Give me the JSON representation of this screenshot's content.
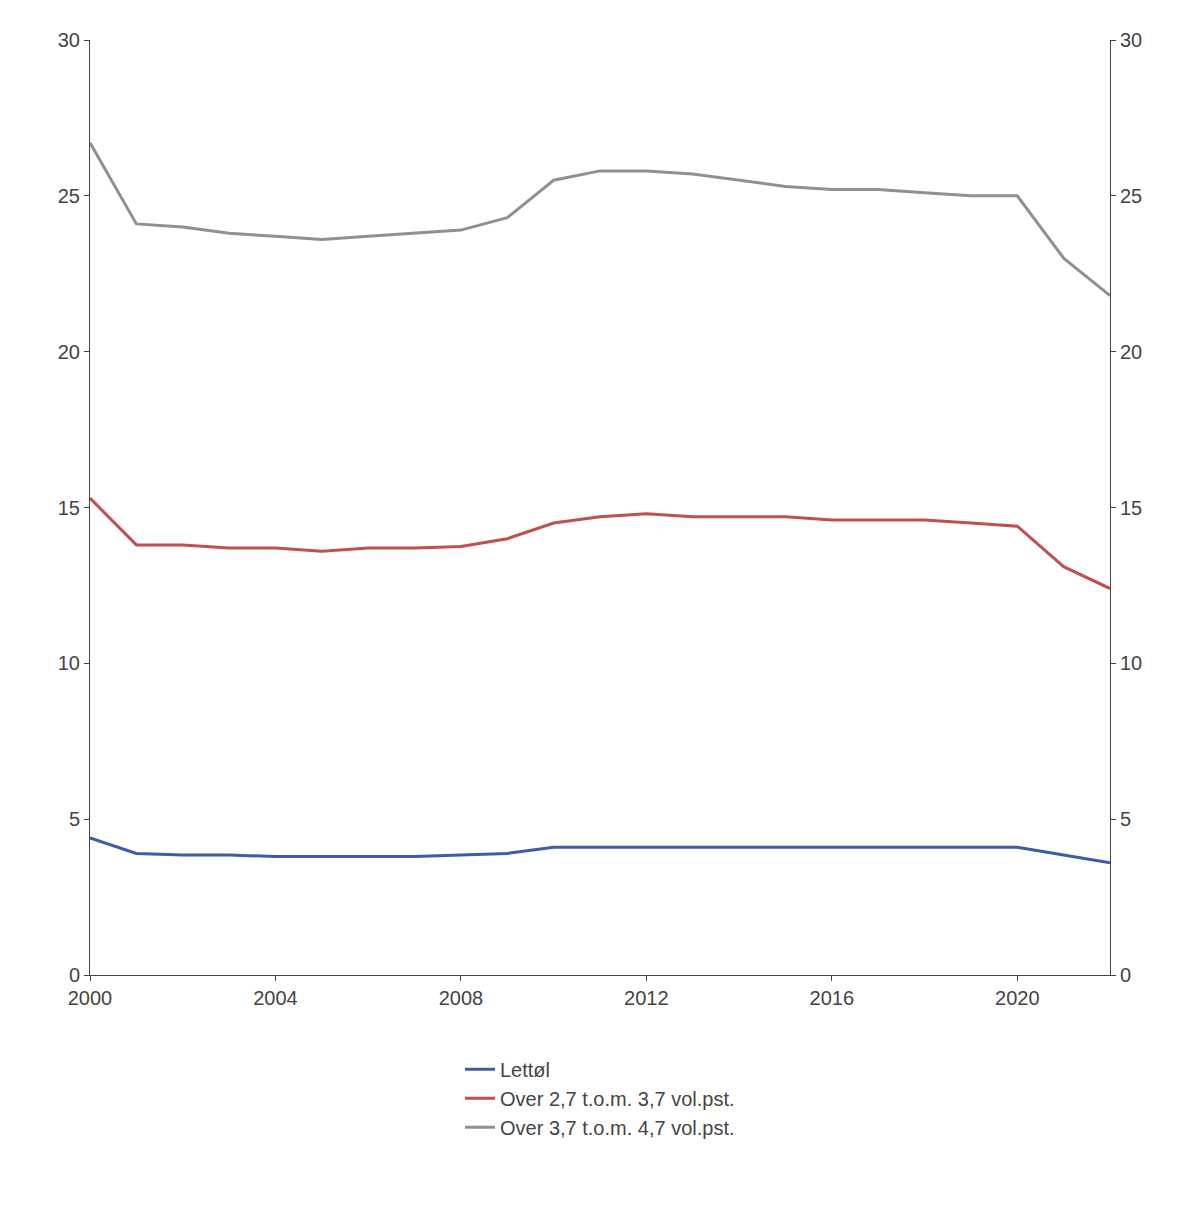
{
  "chart_data": {
    "type": "line",
    "x": [
      2000,
      2001,
      2002,
      2003,
      2004,
      2005,
      2006,
      2007,
      2008,
      2009,
      2010,
      2011,
      2012,
      2013,
      2014,
      2015,
      2016,
      2017,
      2018,
      2019,
      2020,
      2021,
      2022
    ],
    "series": [
      {
        "name": "Lettøl",
        "color": "#3D5BA9",
        "values": [
          4.4,
          3.9,
          3.85,
          3.85,
          3.8,
          3.8,
          3.8,
          3.8,
          3.85,
          3.9,
          4.1,
          4.1,
          4.1,
          4.1,
          4.1,
          4.1,
          4.1,
          4.1,
          4.1,
          4.1,
          4.1,
          3.85,
          3.6
        ]
      },
      {
        "name": "Over 2,7 t.o.m. 3,7 vol.pst.",
        "color": "#C0504D",
        "values": [
          15.3,
          13.8,
          13.8,
          13.7,
          13.7,
          13.6,
          13.7,
          13.7,
          13.75,
          14.0,
          14.5,
          14.7,
          14.8,
          14.7,
          14.7,
          14.7,
          14.6,
          14.6,
          14.6,
          14.5,
          14.4,
          13.1,
          12.4
        ]
      },
      {
        "name": "Over 3,7 t.o.m. 4,7 vol.pst.",
        "color": "#909090",
        "values": [
          26.7,
          24.1,
          24.0,
          23.8,
          23.7,
          23.6,
          23.7,
          23.8,
          23.9,
          24.3,
          25.5,
          25.8,
          25.8,
          25.7,
          25.5,
          25.3,
          25.2,
          25.2,
          25.1,
          25.0,
          25.0,
          23.0,
          21.8
        ]
      }
    ],
    "xlim": [
      2000,
      2022
    ],
    "xticks": [
      2000,
      2004,
      2008,
      2012,
      2016,
      2020
    ],
    "ylim": [
      0,
      30
    ],
    "yticks": [
      0,
      5,
      10,
      15,
      20,
      25,
      30
    ],
    "y2lim": [
      0,
      30
    ],
    "y2ticks": [
      0,
      5,
      10,
      15,
      20,
      25,
      30
    ],
    "grid": false,
    "legend": "bottom"
  }
}
